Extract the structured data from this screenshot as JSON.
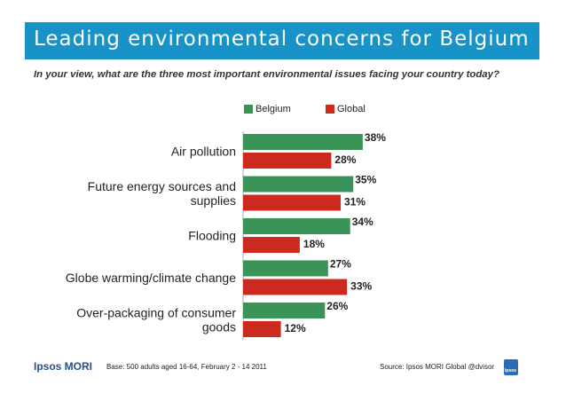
{
  "title": "Leading environmental concerns for Belgium",
  "subtitle": "In your view, what are the three most important environmental issues facing your country today?",
  "footer": {
    "logo": "Ipsos MORI",
    "base": "Base: 500 adults aged 16-64, February 2 - 14 2011",
    "source": "Source: Ipsos MORI Global @dvisor",
    "badge": "Ipsos"
  },
  "colors": {
    "title_bar": "#1793c7",
    "belgium": "#3a9457",
    "global": "#cc2a1f"
  },
  "chart_data": {
    "type": "bar",
    "orientation": "horizontal",
    "categories": [
      [
        "Air pollution"
      ],
      [
        "Future energy sources and",
        "supplies"
      ],
      [
        "Flooding"
      ],
      [
        "Globe warming/climate change"
      ],
      [
        "Over-packaging of consumer",
        "goods"
      ]
    ],
    "series": [
      {
        "name": "Belgium",
        "values": [
          38,
          35,
          34,
          27,
          26
        ],
        "labels": [
          "38%",
          "35%",
          "34%",
          "27%",
          "26%"
        ]
      },
      {
        "name": "Global",
        "values": [
          28,
          31,
          18,
          33,
          12
        ],
        "labels": [
          "28%",
          "31%",
          "18%",
          "33%",
          "12%"
        ]
      }
    ],
    "legend_position": "top",
    "grid": false
  }
}
